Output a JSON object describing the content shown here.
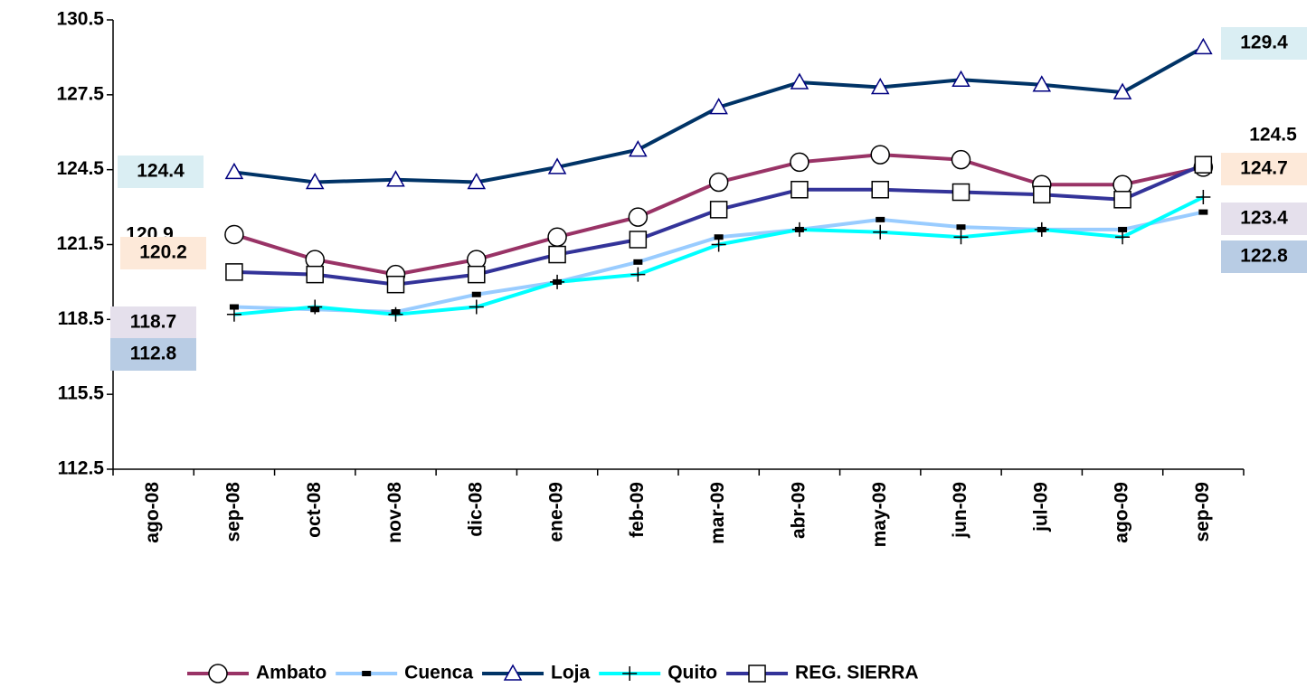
{
  "chart_data": {
    "type": "line",
    "categories": [
      "ago-08",
      "sep-08",
      "oct-08",
      "nov-08",
      "dic-08",
      "ene-09",
      "feb-09",
      "mar-09",
      "abr-09",
      "may-09",
      "jun-09",
      "jul-09",
      "ago-09",
      "sep-09"
    ],
    "series": [
      {
        "name": "Ambato",
        "color": "#993366",
        "marker": "circle",
        "values": [
          null,
          121.9,
          120.9,
          120.3,
          120.9,
          121.8,
          122.6,
          124.0,
          124.8,
          125.1,
          124.9,
          123.9,
          123.9,
          124.6
        ]
      },
      {
        "name": "Cuenca",
        "color": "#99ccff",
        "marker": "dash",
        "values": [
          null,
          119.0,
          118.9,
          118.8,
          119.5,
          120.0,
          120.8,
          121.8,
          122.1,
          122.5,
          122.2,
          122.1,
          122.1,
          122.8
        ]
      },
      {
        "name": "Loja",
        "color": "#003366",
        "marker": "triangle",
        "values": [
          null,
          124.4,
          124.0,
          124.1,
          124.0,
          124.6,
          125.3,
          127.0,
          128.0,
          127.8,
          128.1,
          127.9,
          127.6,
          129.4
        ]
      },
      {
        "name": "Quito",
        "color": "#00ffff",
        "marker": "plus",
        "values": [
          null,
          118.7,
          119.0,
          118.7,
          119.0,
          120.0,
          120.3,
          121.5,
          122.1,
          122.0,
          121.8,
          122.1,
          121.8,
          123.4
        ]
      },
      {
        "name": "REG. SIERRA",
        "color": "#333399",
        "marker": "square",
        "values": [
          null,
          120.4,
          120.3,
          119.9,
          120.3,
          121.1,
          121.7,
          122.9,
          123.7,
          123.7,
          123.6,
          123.5,
          123.3,
          124.7
        ]
      }
    ],
    "ylim": [
      112.5,
      130.5
    ],
    "yticks": [
      112.5,
      115.5,
      118.5,
      121.5,
      124.5,
      127.5,
      130.5
    ],
    "annotations": [
      {
        "text": "124.4",
        "color": "#daeef3"
      },
      {
        "text": "120.9",
        "color": null
      },
      {
        "text": "120.2",
        "color": "#fde9d9"
      },
      {
        "text": "118.7",
        "color": "#e5e0ec"
      },
      {
        "text": "112.8",
        "color": "#b8cce4"
      },
      {
        "text": "129.4",
        "color": "#daeef3"
      },
      {
        "text": "124.5",
        "color": null
      },
      {
        "text": "124.7",
        "color": "#fde9d9"
      },
      {
        "text": "123.4",
        "color": "#e5e0ec"
      },
      {
        "text": "122.8",
        "color": "#b8cce4"
      }
    ],
    "legend": "bottom"
  }
}
